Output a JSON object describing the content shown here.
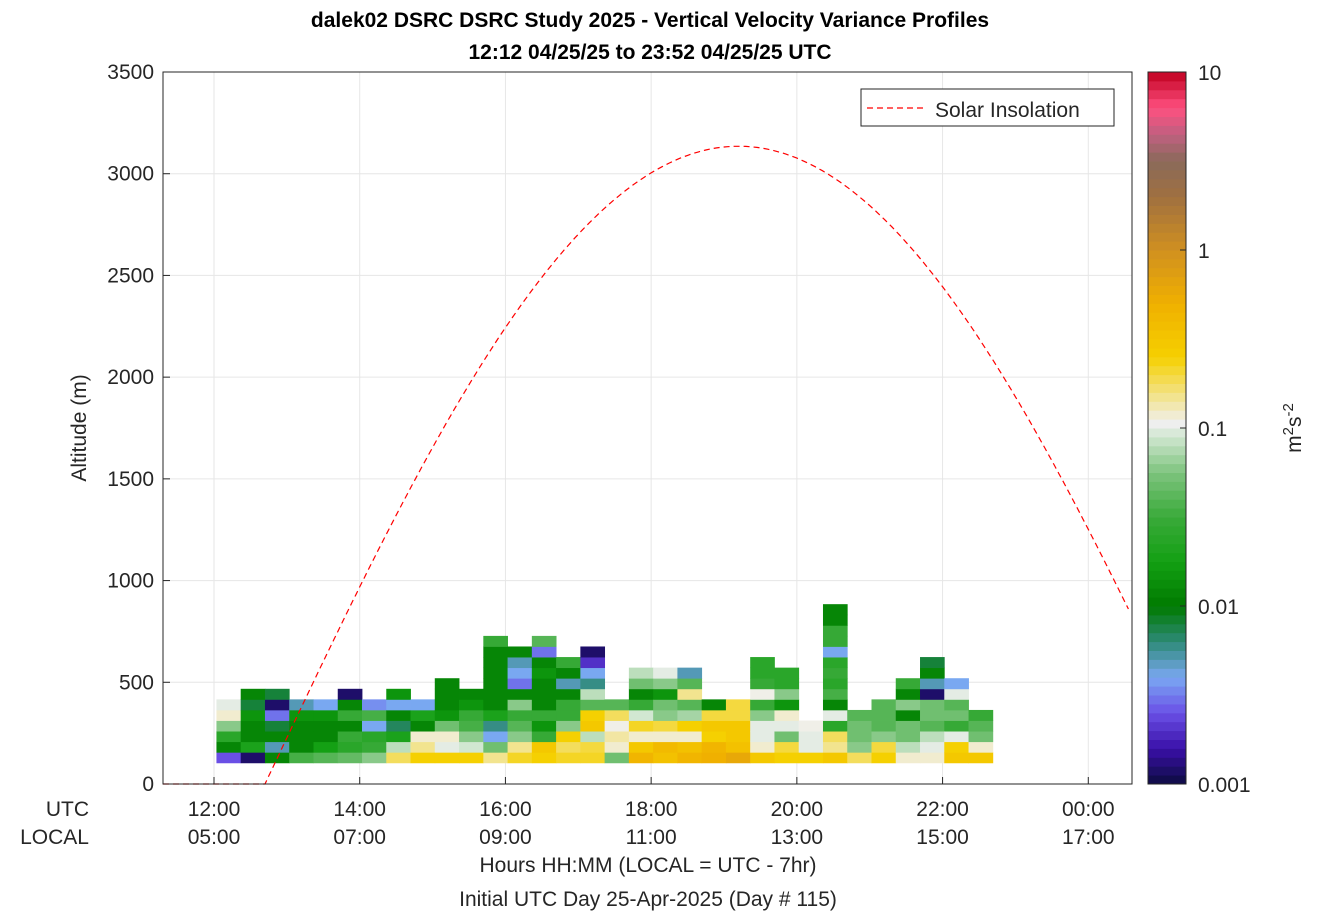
{
  "title_line1": "dalek02 DSRC DSRC Study 2025 - Vertical Velocity Variance Profiles",
  "title_line2": "12:12 04/25/25 to 23:52 04/25/25  UTC",
  "ylabel": "Altitude (m)",
  "xlabel_line1": "Hours HH:MM  (LOCAL = UTC - 7hr)",
  "xlabel_line2": "Initial UTC Day 25-Apr-2025 (Day # 115)",
  "utc_row_label": "UTC",
  "local_row_label": "LOCAL",
  "legend_label": "Solar Insolation",
  "colorbar_label": "m²s⁻²",
  "colorbar_ticks": [
    "10",
    "1",
    "0.1",
    "0.01",
    "0.001"
  ],
  "colors": {
    "solar_line": "#ff0000",
    "grid": "#e6e6e6",
    "axes": "#262626"
  },
  "chart_data": {
    "type": "heatmap",
    "x_range_hours_utc": [
      11.3,
      24.6
    ],
    "ylim": [
      0,
      3500
    ],
    "yticks": [
      0,
      500,
      1000,
      1500,
      2000,
      2500,
      3000,
      3500
    ],
    "xticks_utc": [
      "12:00",
      "14:00",
      "16:00",
      "18:00",
      "20:00",
      "22:00",
      "00:00"
    ],
    "xticks_local": [
      "05:00",
      "07:00",
      "09:00",
      "11:00",
      "13:00",
      "15:00",
      "17:00"
    ],
    "xtick_hours": [
      12,
      14,
      16,
      18,
      20,
      22,
      24
    ],
    "colorbar_range": [
      0.001,
      10
    ],
    "colorbar_scale": "log",
    "grid": true,
    "legend_position": "top-right",
    "time_bin_hours": 0.333,
    "altitude_bin_m": 52,
    "first_time_hours": 12.2,
    "first_altitude_m": 130,
    "columns": [
      [
        0.0025,
        0.012,
        0.025,
        0.06,
        0.12,
        0.1
      ],
      [
        0.0012,
        0.02,
        0.012,
        0.012,
        0.015,
        0.008,
        0.012
      ],
      [
        0.012,
        0.005,
        0.012,
        0.008,
        0.003,
        0.0012,
        0.008
      ],
      [
        0.035,
        0.012,
        0.012,
        0.012,
        0.015,
        0.005
      ],
      [
        0.04,
        0.018,
        0.012,
        0.012,
        0.015,
        0.004
      ],
      [
        0.045,
        0.025,
        0.03,
        0.012,
        0.03,
        0.012,
        0.0012
      ],
      [
        0.06,
        0.03,
        0.025,
        0.004,
        0.035,
        0.0035
      ],
      [
        0.18,
        0.08,
        0.02,
        0.007,
        0.012,
        0.004,
        0.015
      ],
      [
        0.25,
        0.15,
        0.12,
        0.012,
        0.02,
        0.004
      ],
      [
        0.25,
        0.1,
        0.12,
        0.05,
        0.015,
        0.012,
        0.012,
        0.012
      ],
      [
        0.25,
        0.09,
        0.06,
        0.035,
        0.03,
        0.015,
        0.012
      ],
      [
        0.15,
        0.05,
        0.004,
        0.006,
        0.02,
        0.012,
        0.012,
        0.012,
        0.012,
        0.012,
        0.012,
        0.03
      ],
      [
        0.22,
        0.15,
        0.06,
        0.04,
        0.03,
        0.06,
        0.012,
        0.003,
        0.004,
        0.005,
        0.012
      ],
      [
        0.25,
        0.3,
        0.03,
        0.015,
        0.03,
        0.012,
        0.012,
        0.012,
        0.015,
        0.012,
        0.003,
        0.04
      ],
      [
        0.22,
        0.18,
        0.25,
        0.06,
        0.03,
        0.03,
        0.012,
        0.005,
        0.012,
        0.03
      ],
      [
        0.22,
        0.2,
        0.08,
        0.3,
        0.25,
        0.04,
        0.08,
        0.006,
        0.004,
        0.002,
        0.0012
      ],
      [
        0.05,
        0.12,
        0.14,
        0.11,
        0.18,
        0.04
      ],
      [
        0.45,
        0.3,
        0.12,
        0.22,
        0.09,
        0.03,
        0.012,
        0.05,
        0.08
      ],
      [
        0.35,
        0.4,
        0.12,
        0.2,
        0.06,
        0.05,
        0.015,
        0.06,
        0.1
      ],
      [
        0.45,
        0.35,
        0.12,
        0.25,
        0.07,
        0.04,
        0.15,
        0.04,
        0.005
      ],
      [
        0.5,
        0.45,
        0.25,
        0.3,
        0.2,
        0.012
      ],
      [
        0.6,
        0.35,
        0.3,
        0.3,
        0.2,
        0.2
      ],
      [
        0.3,
        0.12,
        0.1,
        0.1,
        0.06,
        0.03,
        0.11,
        0.03,
        0.025,
        0.025
      ],
      [
        0.25,
        0.2,
        0.05,
        0.1,
        0.12,
        0.015,
        0.06,
        0.025,
        0.025
      ],
      [
        0.25,
        0.1,
        0.1,
        0.11
      ],
      [
        0.3,
        0.15,
        0.18,
        0.025,
        0.1,
        0.012,
        0.035,
        0.025,
        0.03,
        0.025,
        0.004,
        0.03,
        0.03,
        0.012,
        0.012
      ],
      [
        0.18,
        0.06,
        0.05,
        0.05,
        0.04
      ],
      [
        0.25,
        0.2,
        0.06,
        0.04,
        0.04,
        0.04
      ],
      [
        0.12,
        0.08,
        0.05,
        0.05,
        0.012,
        0.06,
        0.012,
        0.03
      ],
      [
        0.12,
        0.1,
        0.08,
        0.04,
        0.05,
        0.05,
        0.0012,
        0.005,
        0.012,
        0.008
      ],
      [
        0.3,
        0.25,
        0.1,
        0.03,
        0.05,
        0.04,
        0.1,
        0.004
      ],
      [
        0.3,
        0.12,
        0.05,
        0.04,
        0.03
      ]
    ],
    "solar_insolation_curve": {
      "sunrise_hours_utc": 12.7,
      "solar_noon_hours_utc": 19.2,
      "peak_altitude_axis_units": 3135,
      "start_hours_utc": 11.3,
      "baseline_until_hours_utc": 12.7
    }
  }
}
